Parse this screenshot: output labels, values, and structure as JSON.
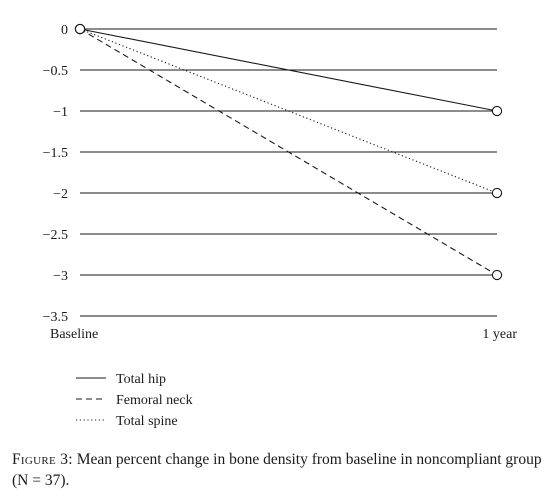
{
  "chart_data": {
    "type": "line",
    "categories": [
      "Baseline",
      "1 year"
    ],
    "yticks": [
      "0",
      "−0.5",
      "−1",
      "−1.5",
      "−2",
      "−2.5",
      "−3",
      "−3.5"
    ],
    "ytick_values": [
      0,
      -0.5,
      -1,
      -1.5,
      -2,
      -2.5,
      -3,
      -3.5
    ],
    "ylim": [
      -3.5,
      0
    ],
    "grid": "horizontal",
    "legend_position": "bottom-left",
    "marker": "open-circle",
    "series": [
      {
        "name": "Total hip",
        "values": [
          0,
          -1
        ],
        "line_style": "solid"
      },
      {
        "name": "Femoral neck",
        "values": [
          0,
          -3
        ],
        "line_style": "dashed"
      },
      {
        "name": "Total spine",
        "values": [
          0,
          -2
        ],
        "line_style": "dotted"
      }
    ],
    "color": "#1a1a1a"
  },
  "caption": {
    "label": "Figure 3:",
    "text": "Mean percent change in bone density from baseline in noncompliant group (N = 37)."
  }
}
